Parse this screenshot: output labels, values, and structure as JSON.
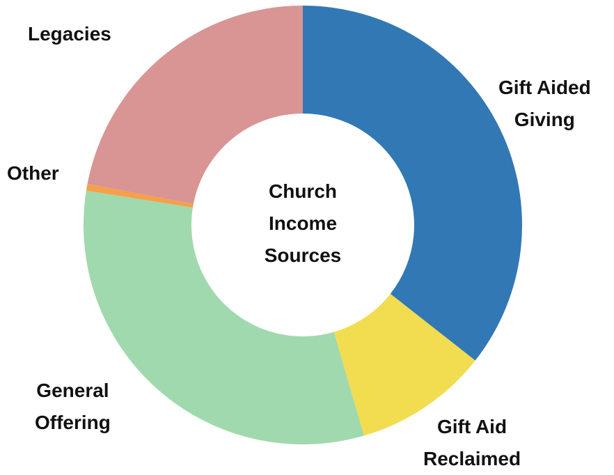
{
  "chart_data": {
    "type": "pie",
    "donut": true,
    "title": [
      "Church",
      "Income",
      "Sources"
    ],
    "legend": "none",
    "slices": [
      {
        "label": [
          "Gift Aided",
          "Giving"
        ],
        "value": 35.6,
        "color": "#3278b5"
      },
      {
        "label": [
          "Gift Aid",
          "Reclaimed"
        ],
        "value": 9.9,
        "color": "#f2dc50"
      },
      {
        "label": [
          "General",
          "Offering"
        ],
        "value": 32.0,
        "color": "#a0d9ad"
      },
      {
        "label": [
          "Other"
        ],
        "value": 0.5,
        "color": "#f5a04a"
      },
      {
        "label": [
          "Legacies"
        ],
        "value": 22.0,
        "color": "#d89594"
      }
    ]
  }
}
